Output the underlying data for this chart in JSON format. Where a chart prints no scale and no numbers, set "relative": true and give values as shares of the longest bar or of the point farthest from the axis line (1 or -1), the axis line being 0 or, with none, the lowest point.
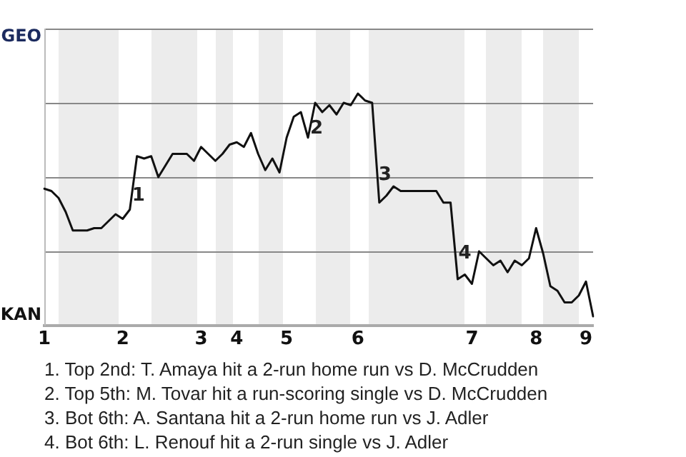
{
  "chart_data": {
    "type": "line",
    "categories": [
      "1",
      null,
      null,
      null,
      null,
      null,
      null,
      null,
      null,
      null,
      null,
      "2",
      null,
      null,
      null,
      null,
      null,
      null,
      null,
      null,
      null,
      null,
      "3",
      null,
      null,
      null,
      null,
      "4",
      null,
      null,
      null,
      null,
      null,
      null,
      "5",
      null,
      null,
      null,
      null,
      null,
      null,
      null,
      null,
      null,
      "6",
      null,
      null,
      null,
      null,
      null,
      null,
      null,
      null,
      null,
      null,
      null,
      null,
      null,
      null,
      null,
      "7",
      null,
      null,
      null,
      null,
      null,
      null,
      null,
      null,
      "8",
      null,
      null,
      null,
      null,
      null,
      null,
      "9",
      null
    ],
    "series": [
      {
        "color": "#111111",
        "values": [
          0.59,
          0.58,
          0.55,
          0.49,
          0.41,
          0.41,
          0.41,
          0.42,
          0.42,
          0.45,
          0.48,
          0.46,
          0.5,
          0.73,
          0.72,
          0.73,
          0.64,
          0.69,
          0.74,
          0.74,
          0.74,
          0.71,
          0.77,
          0.74,
          0.71,
          0.74,
          0.78,
          0.79,
          0.77,
          0.83,
          0.74,
          0.67,
          0.72,
          0.66,
          0.81,
          0.9,
          0.92,
          0.81,
          0.96,
          0.92,
          0.95,
          0.91,
          0.96,
          0.95,
          1,
          0.97,
          0.96,
          0.53,
          0.56,
          0.6,
          0.58,
          0.58,
          0.58,
          0.58,
          0.58,
          0.58,
          0.53,
          0.53,
          0.2,
          0.22,
          0.18,
          0.32,
          0.29,
          0.26,
          0.28,
          0.23,
          0.28,
          0.26,
          0.29,
          0.42,
          0.31,
          0.17,
          0.15,
          0.1,
          0.1,
          0.13,
          0.19,
          0.04
        ]
      }
    ],
    "relative": true,
    "grid": "y",
    "legend": false,
    "marker": "none",
    "line_style": "solid",
    "annotations": [
      {
        "text": "GEO"
      },
      {
        "text": "KAN"
      },
      {
        "text": "1"
      },
      {
        "text": "2"
      },
      {
        "text": "3"
      },
      {
        "text": "4"
      },
      "1. Top 2nd: T. Amaya hit a 2-run home run vs D. McCrudden",
      "2. Top 5th: M. Tovar hit a run-scoring single vs D. McCrudden",
      "3. Bot 6th: A. Santana hit a 2-run home run vs J. Adler",
      "4. Bot 6th: L. Renouf hit a 2-run single vs J. Adler"
    ]
  }
}
